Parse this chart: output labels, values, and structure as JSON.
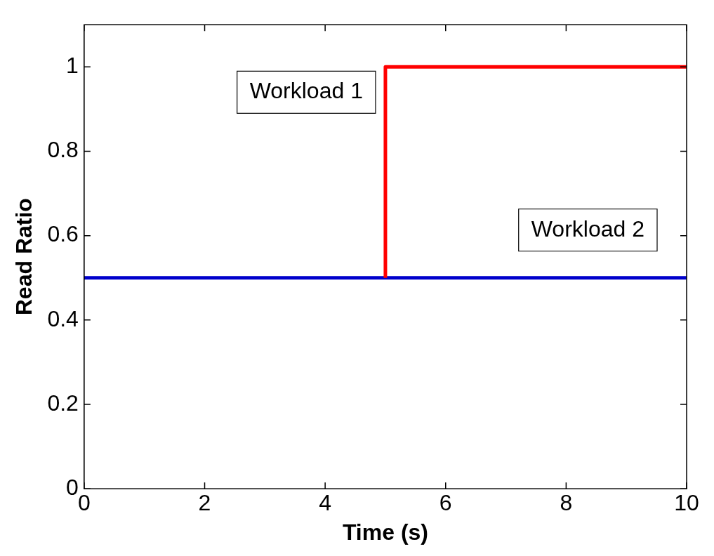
{
  "chart_data": {
    "type": "line",
    "xlabel": "Time (s)",
    "ylabel": "Read Ratio",
    "xlim": [
      0,
      10
    ],
    "xticks": [
      0,
      2,
      4,
      6,
      8,
      10
    ],
    "ylim": [
      0,
      1.1
    ],
    "yticks": [
      0,
      0.2,
      0.4,
      0.6,
      0.8,
      1
    ],
    "grid": false,
    "legend": false,
    "marker": "none",
    "line_style": "solid",
    "series": [
      {
        "name": "Workload 1",
        "color": "#ff0000",
        "x": [
          5,
          5,
          10
        ],
        "values": [
          0.5,
          1,
          1
        ]
      },
      {
        "name": "Workload 2",
        "color": "#0000cc",
        "x": [
          0,
          10
        ],
        "values": [
          0.5,
          0.5
        ]
      }
    ]
  }
}
